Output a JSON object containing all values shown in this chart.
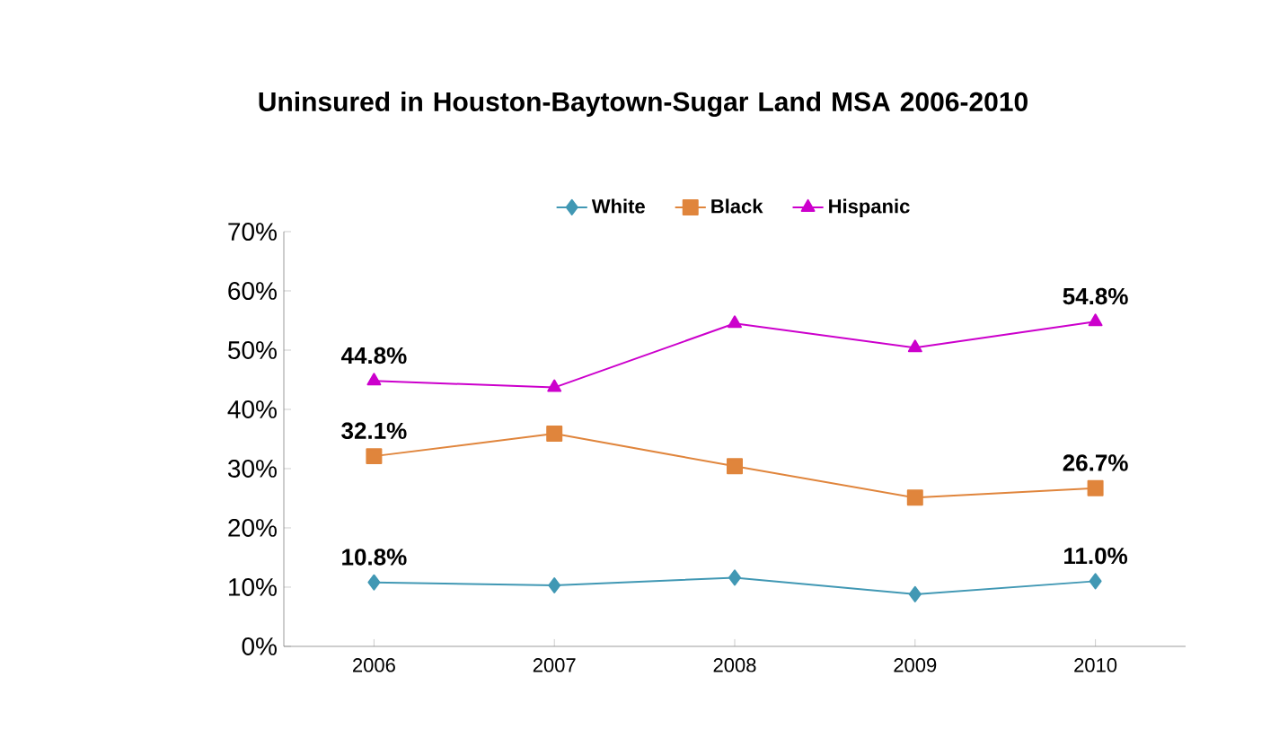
{
  "chart_data": {
    "type": "line",
    "title": "Uninsured in Houston-Baytown-Sugar Land MSA 2006-2010",
    "categories": [
      "2006",
      "2007",
      "2008",
      "2009",
      "2010"
    ],
    "series": [
      {
        "name": "White",
        "color": "#4198b4",
        "marker": "diamond",
        "values": [
          10.8,
          10.3,
          11.6,
          8.8,
          11.0
        ],
        "value_labels": [
          "10.8%",
          null,
          null,
          null,
          "11.0%"
        ]
      },
      {
        "name": "Black",
        "color": "#e0853c",
        "marker": "square",
        "values": [
          32.1,
          35.9,
          30.4,
          25.1,
          26.7
        ],
        "value_labels": [
          "32.1%",
          null,
          null,
          null,
          "26.7%"
        ]
      },
      {
        "name": "Hispanic",
        "color": "#cc00cc",
        "marker": "triangle",
        "values": [
          44.8,
          43.7,
          54.5,
          50.4,
          54.8
        ],
        "value_labels": [
          "44.8%",
          null,
          null,
          null,
          "54.8%"
        ]
      }
    ],
    "ylim": [
      0,
      70
    ],
    "yticks": [
      {
        "value": 0,
        "label": "0%"
      },
      {
        "value": 10,
        "label": "10%"
      },
      {
        "value": 20,
        "label": "20%"
      },
      {
        "value": 30,
        "label": "30%"
      },
      {
        "value": 40,
        "label": "40%"
      },
      {
        "value": 50,
        "label": "50%"
      },
      {
        "value": 60,
        "label": "60%"
      },
      {
        "value": 70,
        "label": "70%"
      }
    ],
    "grid": false,
    "legend": "top"
  }
}
